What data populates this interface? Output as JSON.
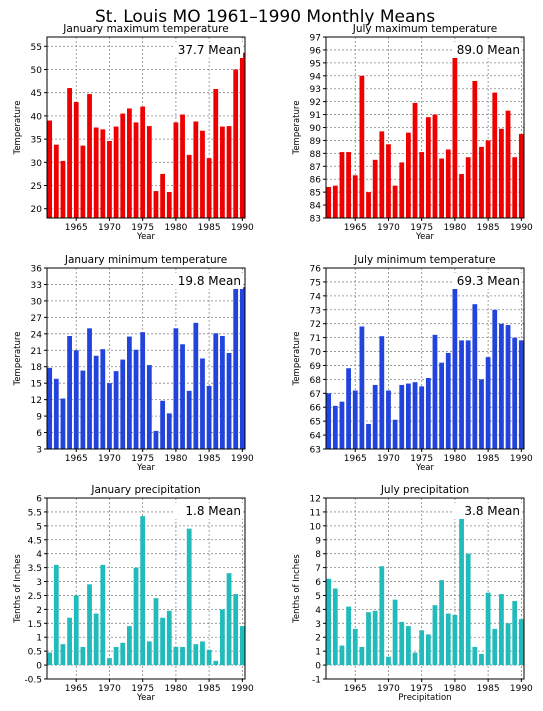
{
  "page_title": "St. Louis MO  1961–1990 Monthly Means",
  "colors": {
    "red": "#ee0000",
    "blue": "#2244dd",
    "teal": "#22bbbb",
    "grid": "#888888"
  },
  "chart_data": [
    {
      "id": "jan_max",
      "type": "bar",
      "title": "January maximum temperature",
      "ylabel": "Temperature",
      "xlabel": "Year",
      "mean_label": "37.7  Mean",
      "color": "red",
      "ylim": [
        18,
        57
      ],
      "yticks": [
        20,
        25,
        30,
        35,
        40,
        45,
        50,
        55
      ],
      "xticks": [
        1965,
        1970,
        1975,
        1980,
        1985,
        1990
      ],
      "xlim": [
        1960.6,
        1990.4
      ],
      "x": [
        1961,
        1962,
        1963,
        1964,
        1965,
        1966,
        1967,
        1968,
        1969,
        1970,
        1971,
        1972,
        1973,
        1974,
        1975,
        1976,
        1977,
        1978,
        1979,
        1980,
        1981,
        1982,
        1983,
        1984,
        1985,
        1986,
        1987,
        1988,
        1989,
        1990
      ],
      "values": [
        39,
        33.8,
        30.3,
        46,
        43,
        33.6,
        44.7,
        37.5,
        37.1,
        34.6,
        37.7,
        40.5,
        41.6,
        38.6,
        42,
        37.8,
        23.8,
        27.5,
        23.6,
        38.6,
        40.3,
        31.6,
        38.8,
        36.8,
        30.9,
        45.8,
        37.7,
        37.8,
        50,
        53.6
      ]
    },
    {
      "id": "jul_max",
      "type": "bar",
      "title": "July maximum temperature",
      "ylabel": "Temperature",
      "xlabel": "Year",
      "mean_label": "89.0  Mean",
      "color": "red",
      "ylim": [
        83,
        97
      ],
      "yticks": [
        83,
        84,
        85,
        86,
        87,
        88,
        89,
        90,
        91,
        92,
        93,
        94,
        95,
        96,
        97
      ],
      "xticks": [
        1965,
        1970,
        1975,
        1980,
        1985,
        1990
      ],
      "xlim": [
        1960.6,
        1990.4
      ],
      "x": [
        1961,
        1962,
        1963,
        1964,
        1965,
        1966,
        1967,
        1968,
        1969,
        1970,
        1971,
        1972,
        1973,
        1974,
        1975,
        1976,
        1977,
        1978,
        1979,
        1980,
        1981,
        1982,
        1983,
        1984,
        1985,
        1986,
        1987,
        1988,
        1989,
        1990
      ],
      "values": [
        85.4,
        85.5,
        88.1,
        88.1,
        86.3,
        94,
        85,
        87.5,
        89.7,
        88.7,
        85.5,
        87.3,
        89.6,
        91.9,
        88.1,
        90.8,
        91,
        87.6,
        88.3,
        95.4,
        86.4,
        87.7,
        93.6,
        88.5,
        89,
        92.7,
        89.9,
        91.3,
        87.7,
        89.5
      ]
    },
    {
      "id": "jan_min",
      "type": "bar",
      "title": "January minimum temperature",
      "ylabel": "Temperature",
      "xlabel": "Year",
      "mean_label": "19.8  Mean",
      "color": "blue",
      "ylim": [
        3,
        36
      ],
      "yticks": [
        3,
        6,
        9,
        12,
        15,
        18,
        21,
        24,
        27,
        30,
        33,
        36
      ],
      "xticks": [
        1965,
        1970,
        1975,
        1980,
        1985,
        1990
      ],
      "xlim": [
        1960.6,
        1990.4
      ],
      "x": [
        1961,
        1962,
        1963,
        1964,
        1965,
        1966,
        1967,
        1968,
        1969,
        1970,
        1971,
        1972,
        1973,
        1974,
        1975,
        1976,
        1977,
        1978,
        1979,
        1980,
        1981,
        1982,
        1983,
        1984,
        1985,
        1986,
        1987,
        1988,
        1989,
        1990
      ],
      "values": [
        17.8,
        15.8,
        12.2,
        23.6,
        21,
        17.3,
        25,
        20,
        21.2,
        15,
        17.2,
        19.3,
        23.5,
        21.1,
        24.3,
        18.3,
        6.3,
        11.8,
        9.5,
        25,
        22.1,
        13.6,
        26,
        19.5,
        14.5,
        24.1,
        23.6,
        20.5,
        32.5,
        32.5
      ]
    },
    {
      "id": "jul_min",
      "type": "bar",
      "title": "July minimum temperature",
      "ylabel": "Temperature",
      "xlabel": "Year",
      "mean_label": "69.3  Mean",
      "color": "blue",
      "ylim": [
        63,
        76
      ],
      "yticks": [
        63,
        64,
        65,
        66,
        67,
        68,
        69,
        70,
        71,
        72,
        73,
        74,
        75,
        76
      ],
      "xticks": [
        1965,
        1970,
        1975,
        1980,
        1985,
        1990
      ],
      "xlim": [
        1960.6,
        1990.4
      ],
      "x": [
        1961,
        1962,
        1963,
        1964,
        1965,
        1966,
        1967,
        1968,
        1969,
        1970,
        1971,
        1972,
        1973,
        1974,
        1975,
        1976,
        1977,
        1978,
        1979,
        1980,
        1981,
        1982,
        1983,
        1984,
        1985,
        1986,
        1987,
        1988,
        1989,
        1990
      ],
      "values": [
        67,
        66.1,
        66.4,
        68.8,
        67.2,
        71.8,
        64.8,
        67.6,
        71.1,
        67.2,
        65.1,
        67.6,
        67.7,
        67.8,
        67.5,
        68.1,
        71.2,
        69.2,
        69.9,
        74.5,
        70.8,
        70.8,
        73.4,
        68,
        69.6,
        73,
        72,
        71.9,
        71,
        70.8
      ]
    },
    {
      "id": "jan_precip",
      "type": "bar",
      "title": "January precipitation",
      "ylabel": "Tenths of Inches",
      "xlabel": "Year",
      "mean_label": "1.8  Mean",
      "color": "teal",
      "ylim": [
        -0.5,
        6
      ],
      "yticks": [
        -0.5,
        0,
        0.5,
        1,
        1.5,
        2,
        2.5,
        3,
        3.5,
        4,
        4.5,
        5,
        5.5,
        6
      ],
      "ytick_labels": [
        "-0.5",
        "0",
        "0.5",
        "1",
        "1.5",
        "2",
        "2.5",
        "3",
        "3.5",
        "4",
        "4.5",
        "5",
        "5.5",
        "6"
      ],
      "xticks": [
        1965,
        1970,
        1975,
        1980,
        1985,
        1990
      ],
      "xlim": [
        1960.6,
        1990.4
      ],
      "x": [
        1961,
        1962,
        1963,
        1964,
        1965,
        1966,
        1967,
        1968,
        1969,
        1970,
        1971,
        1972,
        1973,
        1974,
        1975,
        1976,
        1977,
        1978,
        1979,
        1980,
        1981,
        1982,
        1983,
        1984,
        1985,
        1986,
        1987,
        1988,
        1989,
        1990
      ],
      "values": [
        0.45,
        3.6,
        0.75,
        1.7,
        2.5,
        0.65,
        2.9,
        1.85,
        3.6,
        0.25,
        0.65,
        0.8,
        1.4,
        3.5,
        5.35,
        0.85,
        2.4,
        1.7,
        1.95,
        0.65,
        0.65,
        4.9,
        0.75,
        0.85,
        0.55,
        0.15,
        2,
        3.3,
        2.55,
        1.4
      ]
    },
    {
      "id": "jul_precip",
      "type": "bar",
      "title": "July precipitation",
      "ylabel": "Tenths of Inches",
      "xlabel": "Precipitation",
      "mean_label": "3.8  Mean",
      "color": "teal",
      "ylim": [
        -1,
        12
      ],
      "yticks": [
        -1,
        0,
        1,
        2,
        3,
        4,
        5,
        6,
        7,
        8,
        9,
        10,
        11,
        12
      ],
      "xticks": [
        1965,
        1970,
        1975,
        1980,
        1985,
        1990
      ],
      "xlim": [
        1960.6,
        1990.4
      ],
      "x": [
        1961,
        1962,
        1963,
        1964,
        1965,
        1966,
        1967,
        1968,
        1969,
        1970,
        1971,
        1972,
        1973,
        1974,
        1975,
        1976,
        1977,
        1978,
        1979,
        1980,
        1981,
        1982,
        1983,
        1984,
        1985,
        1986,
        1987,
        1988,
        1989,
        1990
      ],
      "values": [
        6.2,
        5.5,
        1.4,
        4.2,
        2.6,
        1.3,
        3.8,
        3.9,
        7.1,
        0.6,
        4.7,
        3.1,
        2.8,
        0.9,
        2.5,
        2.2,
        4.3,
        6.1,
        3.7,
        3.6,
        10.8,
        8,
        1.3,
        0.8,
        5.2,
        2.6,
        5.1,
        3,
        4.6,
        3.3
      ]
    }
  ]
}
